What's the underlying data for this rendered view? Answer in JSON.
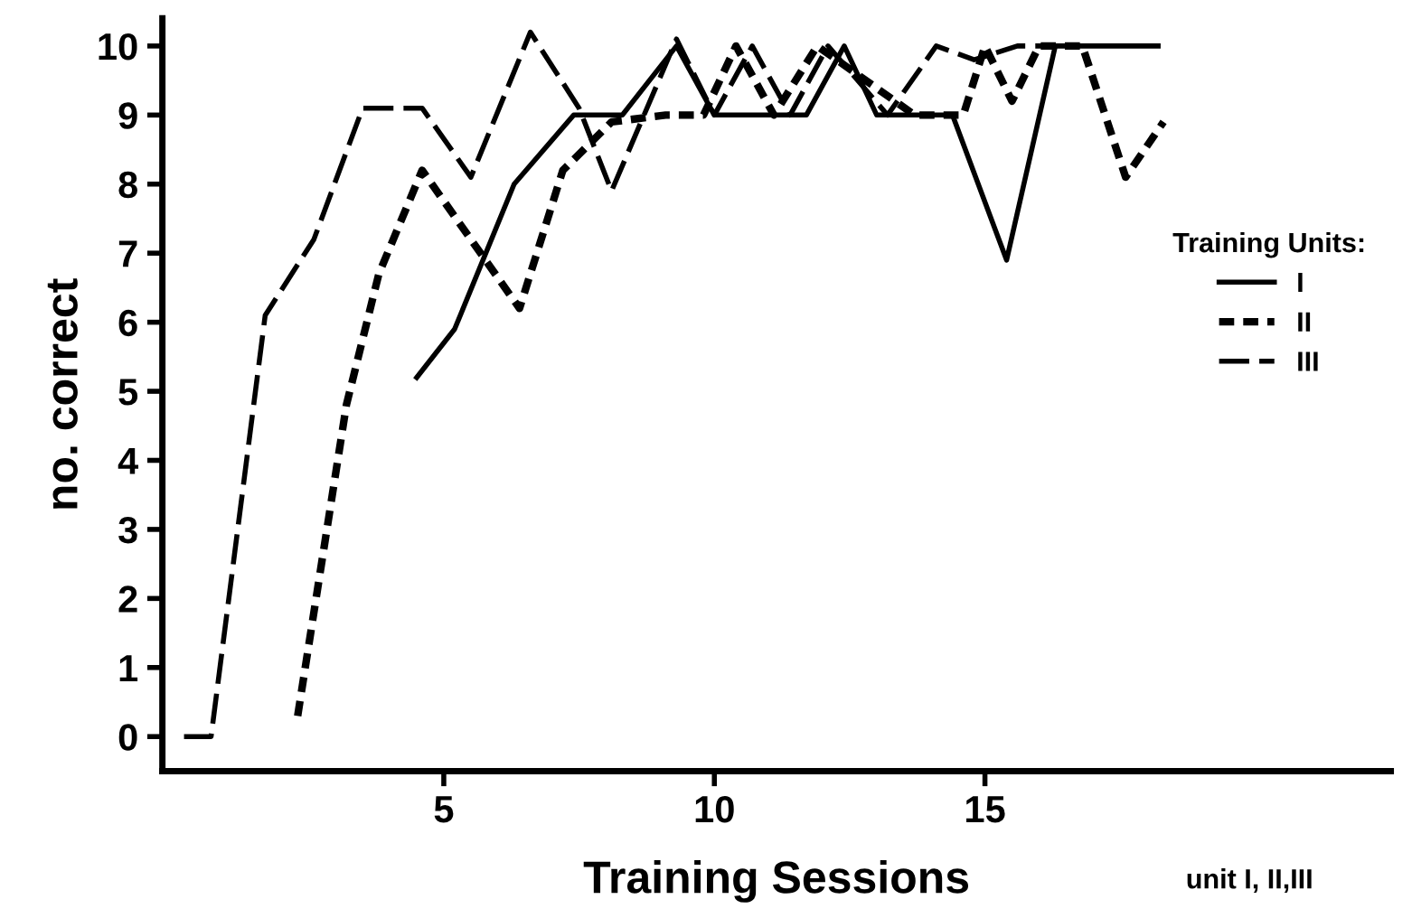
{
  "chart_data": {
    "type": "line",
    "xlabel": "Training Sessions",
    "ylabel": "no. correct",
    "legend_title": "Training Units:",
    "xlim": [
      -0.2,
      22.5
    ],
    "ylim": [
      -0.5,
      10.4
    ],
    "xticks": [
      5,
      10,
      15
    ],
    "yticks": [
      0,
      1,
      2,
      3,
      4,
      5,
      6,
      7,
      8,
      9,
      10
    ],
    "grid": false,
    "legend": "right",
    "marker": "none",
    "series": [
      {
        "name": "I",
        "color": "#000000",
        "line_style": "solid",
        "x": [
          4.5,
          5.2,
          6.3,
          7.4,
          8.3,
          9.3,
          10.0,
          11.7,
          12.4,
          13.0,
          13.7,
          14.4,
          15.4,
          16.3,
          18.2
        ],
        "values": [
          5.2,
          5.9,
          8.0,
          9.0,
          9.0,
          10.0,
          9.0,
          9.0,
          10.0,
          9.0,
          9.0,
          9.0,
          6.9,
          10.0,
          10.0
        ]
      },
      {
        "name": "II",
        "color": "#000000",
        "line_style": "dotted",
        "x": [
          2.3,
          3.2,
          3.8,
          4.6,
          6.4,
          7.2,
          8.1,
          9.1,
          9.8,
          10.4,
          11.1,
          11.9,
          13.7,
          14.6,
          15.0,
          15.5,
          16.0,
          16.8,
          17.6,
          18.3
        ],
        "values": [
          0.3,
          4.8,
          6.7,
          8.2,
          6.2,
          8.2,
          8.9,
          9.0,
          9.0,
          10.0,
          9.0,
          10.0,
          9.0,
          9.0,
          10.0,
          9.2,
          10.0,
          10.0,
          8.1,
          8.9
        ]
      },
      {
        "name": "III",
        "color": "#000000",
        "line_style": "dashed",
        "x": [
          0.2,
          0.7,
          1.7,
          2.6,
          3.5,
          4.6,
          5.5,
          6.6,
          7.5,
          8.1,
          9.3,
          10.0,
          10.7,
          11.4,
          12.1,
          13.2,
          14.1,
          14.8,
          15.6,
          16.2
        ],
        "values": [
          0.0,
          0.0,
          6.1,
          7.2,
          9.1,
          9.1,
          8.1,
          10.2,
          9.1,
          7.9,
          10.1,
          9.0,
          10.0,
          9.0,
          10.0,
          9.0,
          10.0,
          9.8,
          10.0,
          10.0
        ]
      }
    ],
    "annotations": [
      "unit I, II,III"
    ]
  }
}
